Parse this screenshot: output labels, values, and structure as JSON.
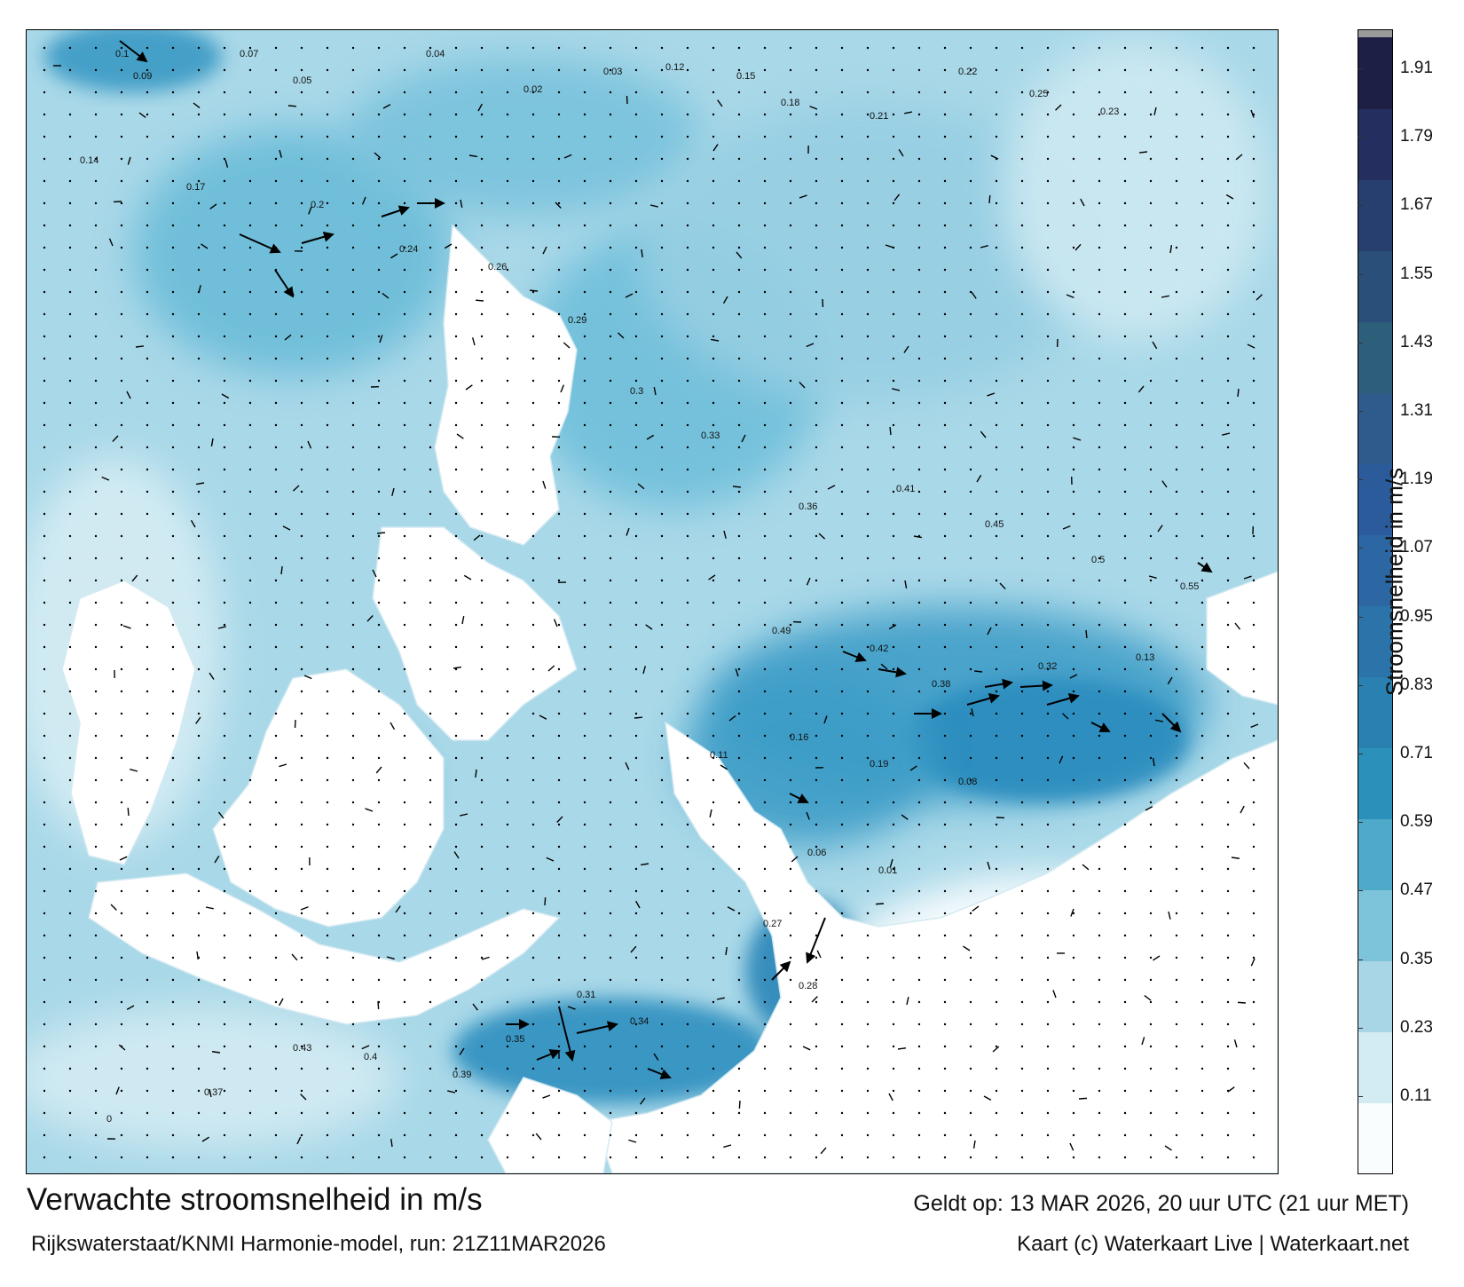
{
  "map": {
    "title": "Verwachte stroomsnelheid in m/s",
    "valid_time": "Geldt op: 13 MAR 2026, 20 uur UTC (21 uur MET)",
    "source": "Rijkswaterstaat/KNMI Harmonie-model, run: 21Z11MAR2026",
    "credit": "Kaart (c) Waterkaart Live | Waterkaart.net",
    "land_color": "#ffffff",
    "arrow_color": "#000000"
  },
  "colorbar": {
    "label": "Stroomsnelheid in m/s",
    "ticks": [
      "1.91",
      "1.79",
      "1.67",
      "1.55",
      "1.43",
      "1.31",
      "1.19",
      "1.07",
      "0.95",
      "0.83",
      "0.71",
      "0.59",
      "0.47",
      "0.35",
      "0.23",
      "0.11"
    ],
    "colors": [
      "#fafdfe",
      "#d3ebf3",
      "#a8d6e6",
      "#7dc3da",
      "#4fa9c9",
      "#2b91bb",
      "#2a80b0",
      "#2b73a8",
      "#2c67a3",
      "#2b5b9a",
      "#2e5a8c",
      "#2d5e7a",
      "#2a4f78",
      "#263f6e",
      "#242f5f",
      "#1d2044"
    ]
  },
  "current_labels": [
    {
      "text": "0.1"
    },
    {
      "text": "0.09"
    },
    {
      "text": "0.07"
    },
    {
      "text": "0.05"
    },
    {
      "text": "0.04"
    },
    {
      "text": "0.02"
    },
    {
      "text": "0.03"
    },
    {
      "text": "0.12"
    },
    {
      "text": "0.15"
    },
    {
      "text": "0.18"
    },
    {
      "text": "0.21"
    },
    {
      "text": "0.22"
    },
    {
      "text": "0.25"
    },
    {
      "text": "0.23"
    },
    {
      "text": "0.14"
    },
    {
      "text": "0.17"
    },
    {
      "text": "0.2"
    },
    {
      "text": "0.24"
    },
    {
      "text": "0.26"
    },
    {
      "text": "0.29"
    },
    {
      "text": "0.3"
    },
    {
      "text": "0.33"
    },
    {
      "text": "0.36"
    },
    {
      "text": "0.41"
    },
    {
      "text": "0.45"
    },
    {
      "text": "0.5"
    },
    {
      "text": "0.55"
    },
    {
      "text": "0.49"
    },
    {
      "text": "0.42"
    },
    {
      "text": "0.38"
    },
    {
      "text": "0.32"
    },
    {
      "text": "0.13"
    },
    {
      "text": "0.11"
    },
    {
      "text": "0.16"
    },
    {
      "text": "0.19"
    },
    {
      "text": "0.08"
    },
    {
      "text": "0.06"
    },
    {
      "text": "0.01"
    },
    {
      "text": "0.27"
    },
    {
      "text": "0.28"
    },
    {
      "text": "0.31"
    },
    {
      "text": "0.34"
    },
    {
      "text": "0.35"
    },
    {
      "text": "0.39"
    },
    {
      "text": "0.4"
    },
    {
      "text": "0.43"
    },
    {
      "text": "0.37"
    },
    {
      "text": "0"
    }
  ]
}
